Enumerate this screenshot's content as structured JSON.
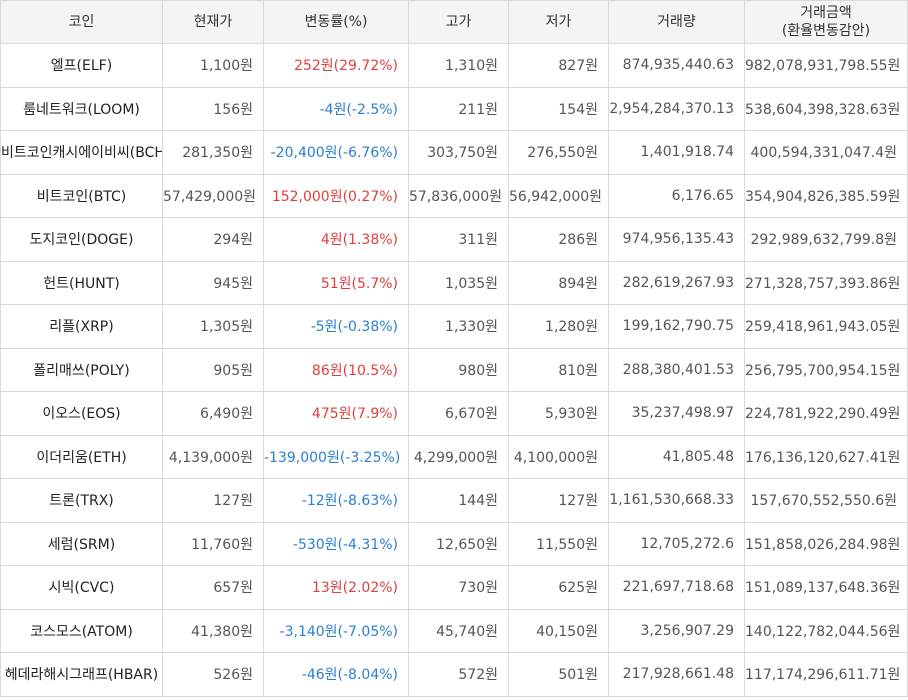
{
  "headers": {
    "coin": "코인",
    "price": "현재가",
    "change": "변동률(%)",
    "high": "고가",
    "low": "저가",
    "volume": "거래량",
    "amount_line1": "거래금액",
    "amount_line2": "(환율변동감안)"
  },
  "rows": [
    {
      "name": "엘프(ELF)",
      "price": "1,100원",
      "change": "252원(29.72%)",
      "dir": "up",
      "high": "1,310원",
      "low": "827원",
      "volume": "874,935,440.63",
      "amount": "982,078,931,798.55원"
    },
    {
      "name": "룸네트워크(LOOM)",
      "price": "156원",
      "change": "-4원(-2.5%)",
      "dir": "down",
      "high": "211원",
      "low": "154원",
      "volume": "2,954,284,370.13",
      "amount": "538,604,398,328.63원"
    },
    {
      "name": "비트코인캐시에이비씨(BCHA)",
      "price": "281,350원",
      "change": "-20,400원(-6.76%)",
      "dir": "down",
      "high": "303,750원",
      "low": "276,550원",
      "volume": "1,401,918.74",
      "amount": "400,594,331,047.4원"
    },
    {
      "name": "비트코인(BTC)",
      "price": "57,429,000원",
      "change": "152,000원(0.27%)",
      "dir": "up",
      "high": "57,836,000원",
      "low": "56,942,000원",
      "volume": "6,176.65",
      "amount": "354,904,826,385.59원"
    },
    {
      "name": "도지코인(DOGE)",
      "price": "294원",
      "change": "4원(1.38%)",
      "dir": "up",
      "high": "311원",
      "low": "286원",
      "volume": "974,956,135.43",
      "amount": "292,989,632,799.8원"
    },
    {
      "name": "헌트(HUNT)",
      "price": "945원",
      "change": "51원(5.7%)",
      "dir": "up",
      "high": "1,035원",
      "low": "894원",
      "volume": "282,619,267.93",
      "amount": "271,328,757,393.86원"
    },
    {
      "name": "리플(XRP)",
      "price": "1,305원",
      "change": "-5원(-0.38%)",
      "dir": "down",
      "high": "1,330원",
      "low": "1,280원",
      "volume": "199,162,790.75",
      "amount": "259,418,961,943.05원"
    },
    {
      "name": "폴리매쓰(POLY)",
      "price": "905원",
      "change": "86원(10.5%)",
      "dir": "up",
      "high": "980원",
      "low": "810원",
      "volume": "288,380,401.53",
      "amount": "256,795,700,954.15원"
    },
    {
      "name": "이오스(EOS)",
      "price": "6,490원",
      "change": "475원(7.9%)",
      "dir": "up",
      "high": "6,670원",
      "low": "5,930원",
      "volume": "35,237,498.97",
      "amount": "224,781,922,290.49원"
    },
    {
      "name": "이더리움(ETH)",
      "price": "4,139,000원",
      "change": "-139,000원(-3.25%)",
      "dir": "down",
      "high": "4,299,000원",
      "low": "4,100,000원",
      "volume": "41,805.48",
      "amount": "176,136,120,627.41원"
    },
    {
      "name": "트론(TRX)",
      "price": "127원",
      "change": "-12원(-8.63%)",
      "dir": "down",
      "high": "144원",
      "low": "127원",
      "volume": "1,161,530,668.33",
      "amount": "157,670,552,550.6원"
    },
    {
      "name": "세럼(SRM)",
      "price": "11,760원",
      "change": "-530원(-4.31%)",
      "dir": "down",
      "high": "12,650원",
      "low": "11,550원",
      "volume": "12,705,272.6",
      "amount": "151,858,026,284.98원"
    },
    {
      "name": "시빅(CVC)",
      "price": "657원",
      "change": "13원(2.02%)",
      "dir": "up",
      "high": "730원",
      "low": "625원",
      "volume": "221,697,718.68",
      "amount": "151,089,137,648.36원"
    },
    {
      "name": "코스모스(ATOM)",
      "price": "41,380원",
      "change": "-3,140원(-7.05%)",
      "dir": "down",
      "high": "45,740원",
      "low": "40,150원",
      "volume": "3,256,907.29",
      "amount": "140,122,782,044.56원"
    },
    {
      "name": "헤데라해시그래프(HBAR)",
      "price": "526원",
      "change": "-46원(-8.04%)",
      "dir": "down",
      "high": "572원",
      "low": "501원",
      "volume": "217,928,661.48",
      "amount": "117,174,296,611.71원"
    }
  ],
  "colors": {
    "up": "#e03e3e",
    "down": "#2a7fd4",
    "header_bg": "#f4f4f4",
    "border": "#d9d9d9"
  }
}
